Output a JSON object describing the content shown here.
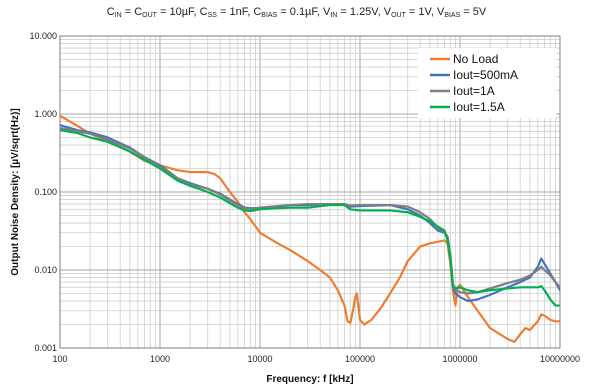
{
  "chart_data": {
    "type": "line",
    "title_parts": [
      {
        "text": "C",
        "sub": "IN"
      },
      {
        "text": " = C",
        "sub": "OUT"
      },
      {
        "text": " = 10µF, C",
        "sub": "SS"
      },
      {
        "text": " = 1nF, C",
        "sub": "BIAS"
      },
      {
        "text": " = 0.1µF, V",
        "sub": "IN"
      },
      {
        "text": " = 1.25V, V",
        "sub": "OUT"
      },
      {
        "text": " = 1V, V",
        "sub": "BIAS"
      },
      {
        "text": " = 5V",
        "sub": ""
      }
    ],
    "xlabel": "Frequency: f [kHz]",
    "ylabel": "Output Noise Density: [µV/sqrt(Hz)]",
    "x_scale": "log",
    "y_scale": "log",
    "xlim": [
      100,
      10000000
    ],
    "ylim": [
      0.001,
      10
    ],
    "x_ticks": [
      {
        "value": 100,
        "label": "100"
      },
      {
        "value": 1000,
        "label": "1000"
      },
      {
        "value": 10000,
        "label": "10000"
      },
      {
        "value": 100000,
        "label": "100000"
      },
      {
        "value": 1000000,
        "label": "1000000"
      },
      {
        "value": 10000000,
        "label": "10000000"
      }
    ],
    "y_ticks": [
      {
        "value": 0.001,
        "label": "0.001"
      },
      {
        "value": 0.01,
        "label": "0.010"
      },
      {
        "value": 0.1,
        "label": "0.100"
      },
      {
        "value": 1,
        "label": "1.000"
      },
      {
        "value": 10,
        "label": "10.000"
      }
    ],
    "grid": true,
    "legend_position": "top-right",
    "series": [
      {
        "name": "No Load",
        "color": "#ED7D31",
        "points": [
          [
            100,
            0.95
          ],
          [
            150,
            0.7
          ],
          [
            200,
            0.56
          ],
          [
            300,
            0.45
          ],
          [
            500,
            0.33
          ],
          [
            700,
            0.25
          ],
          [
            1000,
            0.22
          ],
          [
            1500,
            0.19
          ],
          [
            2000,
            0.18
          ],
          [
            3000,
            0.18
          ],
          [
            3500,
            0.17
          ],
          [
            4000,
            0.15
          ],
          [
            5000,
            0.1
          ],
          [
            6000,
            0.075
          ],
          [
            7000,
            0.055
          ],
          [
            8000,
            0.045
          ],
          [
            10000,
            0.03
          ],
          [
            15000,
            0.022
          ],
          [
            20000,
            0.018
          ],
          [
            30000,
            0.013
          ],
          [
            40000,
            0.01
          ],
          [
            50000,
            0.008
          ],
          [
            60000,
            0.0055
          ],
          [
            70000,
            0.0035
          ],
          [
            75000,
            0.0022
          ],
          [
            80000,
            0.0021
          ],
          [
            85000,
            0.003
          ],
          [
            90000,
            0.0045
          ],
          [
            93000,
            0.005
          ],
          [
            96000,
            0.0035
          ],
          [
            100000,
            0.0023
          ],
          [
            110000,
            0.002
          ],
          [
            130000,
            0.0023
          ],
          [
            160000,
            0.0032
          ],
          [
            200000,
            0.005
          ],
          [
            250000,
            0.008
          ],
          [
            300000,
            0.013
          ],
          [
            400000,
            0.02
          ],
          [
            500000,
            0.022
          ],
          [
            600000,
            0.023
          ],
          [
            700000,
            0.024
          ],
          [
            750000,
            0.022
          ],
          [
            800000,
            0.012
          ],
          [
            850000,
            0.0055
          ],
          [
            900000,
            0.0035
          ],
          [
            950000,
            0.006
          ],
          [
            1000000,
            0.0065
          ],
          [
            1200000,
            0.0045
          ],
          [
            1500000,
            0.003
          ],
          [
            2000000,
            0.0018
          ],
          [
            3000000,
            0.0013
          ],
          [
            3500000,
            0.0012
          ],
          [
            4000000,
            0.0015
          ],
          [
            4500000,
            0.0018
          ],
          [
            5000000,
            0.0017
          ],
          [
            6000000,
            0.0022
          ],
          [
            6500000,
            0.0027
          ],
          [
            7000000,
            0.0026
          ],
          [
            8000000,
            0.0023
          ],
          [
            9000000,
            0.0022
          ],
          [
            10000000,
            0.0022
          ]
        ]
      },
      {
        "name": "Iout=500mA",
        "color": "#4472C4",
        "points": [
          [
            100,
            0.72
          ],
          [
            150,
            0.62
          ],
          [
            200,
            0.58
          ],
          [
            300,
            0.5
          ],
          [
            500,
            0.37
          ],
          [
            700,
            0.28
          ],
          [
            1000,
            0.22
          ],
          [
            1500,
            0.15
          ],
          [
            2000,
            0.13
          ],
          [
            3000,
            0.11
          ],
          [
            4000,
            0.095
          ],
          [
            5000,
            0.08
          ],
          [
            6000,
            0.07
          ],
          [
            7000,
            0.063
          ],
          [
            8000,
            0.062
          ],
          [
            10000,
            0.062
          ],
          [
            15000,
            0.065
          ],
          [
            20000,
            0.068
          ],
          [
            30000,
            0.068
          ],
          [
            50000,
            0.07
          ],
          [
            70000,
            0.07
          ],
          [
            80000,
            0.065
          ],
          [
            100000,
            0.066
          ],
          [
            150000,
            0.067
          ],
          [
            200000,
            0.068
          ],
          [
            300000,
            0.06
          ],
          [
            400000,
            0.05
          ],
          [
            500000,
            0.04
          ],
          [
            600000,
            0.032
          ],
          [
            700000,
            0.03
          ],
          [
            750000,
            0.026
          ],
          [
            800000,
            0.015
          ],
          [
            850000,
            0.006
          ],
          [
            900000,
            0.005
          ],
          [
            1000000,
            0.0045
          ],
          [
            1200000,
            0.004
          ],
          [
            1500000,
            0.0042
          ],
          [
            2000000,
            0.0048
          ],
          [
            3000000,
            0.006
          ],
          [
            4000000,
            0.007
          ],
          [
            5000000,
            0.008
          ],
          [
            6000000,
            0.011
          ],
          [
            6500000,
            0.014
          ],
          [
            7000000,
            0.012
          ],
          [
            8000000,
            0.009
          ],
          [
            9000000,
            0.007
          ],
          [
            10000000,
            0.0055
          ]
        ]
      },
      {
        "name": "Iout=1A",
        "color": "#7F7F7F",
        "points": [
          [
            100,
            0.66
          ],
          [
            150,
            0.6
          ],
          [
            200,
            0.56
          ],
          [
            300,
            0.47
          ],
          [
            500,
            0.36
          ],
          [
            700,
            0.28
          ],
          [
            1000,
            0.21
          ],
          [
            1500,
            0.15
          ],
          [
            2000,
            0.125
          ],
          [
            3000,
            0.11
          ],
          [
            4000,
            0.093
          ],
          [
            5000,
            0.078
          ],
          [
            6000,
            0.068
          ],
          [
            7000,
            0.062
          ],
          [
            8000,
            0.061
          ],
          [
            10000,
            0.063
          ],
          [
            15000,
            0.066
          ],
          [
            20000,
            0.068
          ],
          [
            30000,
            0.07
          ],
          [
            50000,
            0.07
          ],
          [
            70000,
            0.07
          ],
          [
            80000,
            0.067
          ],
          [
            100000,
            0.068
          ],
          [
            150000,
            0.068
          ],
          [
            200000,
            0.068
          ],
          [
            300000,
            0.065
          ],
          [
            400000,
            0.055
          ],
          [
            500000,
            0.045
          ],
          [
            600000,
            0.035
          ],
          [
            700000,
            0.03
          ],
          [
            750000,
            0.027
          ],
          [
            800000,
            0.016
          ],
          [
            850000,
            0.0065
          ],
          [
            900000,
            0.0055
          ],
          [
            1000000,
            0.0052
          ],
          [
            1200000,
            0.005
          ],
          [
            1500000,
            0.0052
          ],
          [
            2000000,
            0.0058
          ],
          [
            3000000,
            0.0068
          ],
          [
            4000000,
            0.0075
          ],
          [
            5000000,
            0.0085
          ],
          [
            6000000,
            0.01
          ],
          [
            6500000,
            0.011
          ],
          [
            7000000,
            0.01
          ],
          [
            8000000,
            0.0085
          ],
          [
            9000000,
            0.007
          ],
          [
            10000000,
            0.006
          ]
        ]
      },
      {
        "name": "Iout=1.5A",
        "color": "#00B050",
        "points": [
          [
            100,
            0.62
          ],
          [
            150,
            0.57
          ],
          [
            200,
            0.5
          ],
          [
            300,
            0.44
          ],
          [
            500,
            0.33
          ],
          [
            700,
            0.26
          ],
          [
            1000,
            0.2
          ],
          [
            1500,
            0.14
          ],
          [
            2000,
            0.12
          ],
          [
            3000,
            0.1
          ],
          [
            4000,
            0.085
          ],
          [
            5000,
            0.072
          ],
          [
            6000,
            0.063
          ],
          [
            7000,
            0.058
          ],
          [
            8000,
            0.057
          ],
          [
            10000,
            0.06
          ],
          [
            15000,
            0.062
          ],
          [
            20000,
            0.063
          ],
          [
            30000,
            0.063
          ],
          [
            50000,
            0.068
          ],
          [
            70000,
            0.068
          ],
          [
            80000,
            0.06
          ],
          [
            100000,
            0.058
          ],
          [
            150000,
            0.058
          ],
          [
            200000,
            0.058
          ],
          [
            300000,
            0.055
          ],
          [
            400000,
            0.048
          ],
          [
            500000,
            0.042
          ],
          [
            600000,
            0.036
          ],
          [
            700000,
            0.032
          ],
          [
            750000,
            0.024
          ],
          [
            800000,
            0.014
          ],
          [
            850000,
            0.0065
          ],
          [
            900000,
            0.0058
          ],
          [
            1000000,
            0.006
          ],
          [
            1200000,
            0.0055
          ],
          [
            1500000,
            0.0052
          ],
          [
            2000000,
            0.0055
          ],
          [
            3000000,
            0.0058
          ],
          [
            4000000,
            0.006
          ],
          [
            5000000,
            0.006
          ],
          [
            6000000,
            0.006
          ],
          [
            6500000,
            0.0062
          ],
          [
            7000000,
            0.0055
          ],
          [
            8000000,
            0.0042
          ],
          [
            9000000,
            0.0035
          ],
          [
            10000000,
            0.0035
          ]
        ]
      }
    ]
  }
}
